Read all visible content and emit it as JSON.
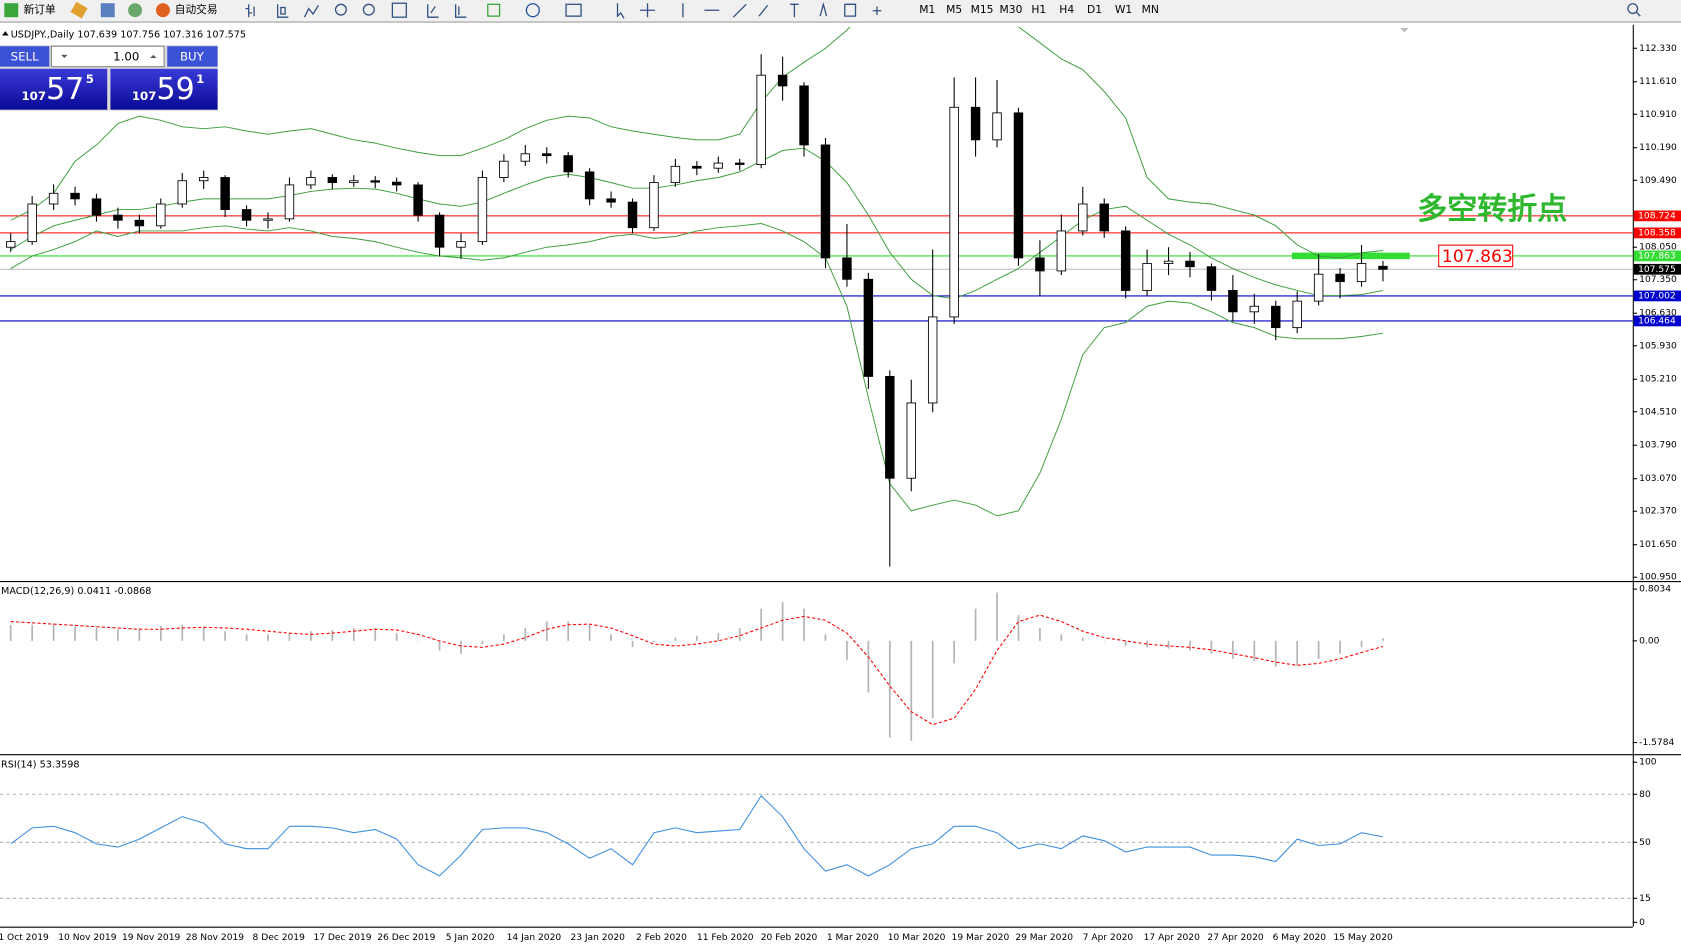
{
  "toolbar": {
    "buttons": [
      "新订单",
      "自动交易"
    ],
    "timeframes": [
      "M1",
      "M5",
      "M15",
      "M30",
      "H1",
      "H4",
      "D1",
      "W1",
      "MN"
    ]
  },
  "trade_panel": {
    "sell_label": "SELL",
    "lots": "1.00",
    "buy_label": "BUY",
    "sell_price": {
      "big": "107",
      "mid": "57",
      "small": "5"
    },
    "buy_price": {
      "big": "107",
      "mid": "59",
      "small": "1"
    }
  },
  "chart_data": {
    "type": "candlestick",
    "symbol": "USDJPY.,Daily",
    "ohlc": [
      [
        108.05,
        108.35,
        107.95,
        108.17
      ],
      [
        108.17,
        109.15,
        108.1,
        108.98
      ],
      [
        108.98,
        109.4,
        108.85,
        109.21
      ],
      [
        109.21,
        109.35,
        108.95,
        109.09
      ],
      [
        109.09,
        109.2,
        108.6,
        108.74
      ],
      [
        108.74,
        108.9,
        108.45,
        108.63
      ],
      [
        108.63,
        108.75,
        108.35,
        108.51
      ],
      [
        108.51,
        109.1,
        108.45,
        108.98
      ],
      [
        108.98,
        109.65,
        108.9,
        109.48
      ],
      [
        109.48,
        109.7,
        109.3,
        109.55
      ],
      [
        109.55,
        109.6,
        108.7,
        108.86
      ],
      [
        108.86,
        108.95,
        108.5,
        108.63
      ],
      [
        108.63,
        108.8,
        108.45,
        108.66
      ],
      [
        108.66,
        109.55,
        108.6,
        109.39
      ],
      [
        109.39,
        109.7,
        109.3,
        109.55
      ],
      [
        109.55,
        109.62,
        109.3,
        109.44
      ],
      [
        109.44,
        109.6,
        109.35,
        109.48
      ],
      [
        109.48,
        109.58,
        109.32,
        109.45
      ],
      [
        109.45,
        109.55,
        109.25,
        109.39
      ],
      [
        109.39,
        109.45,
        108.6,
        108.74
      ],
      [
        108.74,
        108.8,
        107.85,
        108.05
      ],
      [
        108.05,
        108.35,
        107.8,
        108.17
      ],
      [
        108.17,
        109.7,
        108.1,
        109.55
      ],
      [
        109.55,
        110.05,
        109.45,
        109.9
      ],
      [
        109.9,
        110.25,
        109.8,
        110.06
      ],
      [
        110.06,
        110.2,
        109.85,
        110.02
      ],
      [
        110.02,
        110.1,
        109.55,
        109.67
      ],
      [
        109.67,
        109.75,
        108.95,
        109.09
      ],
      [
        109.09,
        109.25,
        108.9,
        109.02
      ],
      [
        109.02,
        109.1,
        108.35,
        108.47
      ],
      [
        108.47,
        109.6,
        108.4,
        109.44
      ],
      [
        109.44,
        109.95,
        109.35,
        109.79
      ],
      [
        109.79,
        109.9,
        109.6,
        109.75
      ],
      [
        109.75,
        110.0,
        109.65,
        109.86
      ],
      [
        109.86,
        109.95,
        109.7,
        109.83
      ],
      [
        109.83,
        112.2,
        109.75,
        111.75
      ],
      [
        111.75,
        112.15,
        111.2,
        111.52
      ],
      [
        111.52,
        111.6,
        110.0,
        110.25
      ],
      [
        110.25,
        110.4,
        107.6,
        107.82
      ],
      [
        107.82,
        108.55,
        107.2,
        107.36
      ],
      [
        107.36,
        107.5,
        105.0,
        105.27
      ],
      [
        105.27,
        105.4,
        101.18,
        103.08
      ],
      [
        103.08,
        105.2,
        102.8,
        104.7
      ],
      [
        104.7,
        108.0,
        104.5,
        106.55
      ],
      [
        106.55,
        111.7,
        106.4,
        111.06
      ],
      [
        111.06,
        111.7,
        110.0,
        110.36
      ],
      [
        110.36,
        111.65,
        110.2,
        110.94
      ],
      [
        110.94,
        111.05,
        107.65,
        107.82
      ],
      [
        107.82,
        108.2,
        107.0,
        107.54
      ],
      [
        107.54,
        108.75,
        107.45,
        108.4
      ],
      [
        108.4,
        109.35,
        108.3,
        108.98
      ],
      [
        108.98,
        109.1,
        108.25,
        108.4
      ],
      [
        108.4,
        108.5,
        106.95,
        107.12
      ],
      [
        107.12,
        108.0,
        107.0,
        107.7
      ],
      [
        107.7,
        108.05,
        107.45,
        107.75
      ],
      [
        107.75,
        107.95,
        107.4,
        107.63
      ],
      [
        107.63,
        107.7,
        106.9,
        107.12
      ],
      [
        107.12,
        107.45,
        106.45,
        106.66
      ],
      [
        106.66,
        107.05,
        106.4,
        106.78
      ],
      [
        106.78,
        106.9,
        106.05,
        106.32
      ],
      [
        106.32,
        107.1,
        106.2,
        106.89
      ],
      [
        106.89,
        107.9,
        106.8,
        107.47
      ],
      [
        107.47,
        107.6,
        106.95,
        107.31
      ],
      [
        107.31,
        108.1,
        107.2,
        107.7
      ],
      [
        107.639,
        107.756,
        107.316,
        107.575
      ]
    ],
    "bollinger": {
      "color": "#3c9e3c",
      "upper": [
        108.63,
        108.86,
        109.21,
        109.9,
        110.25,
        110.71,
        110.87,
        110.78,
        110.64,
        110.6,
        110.64,
        110.55,
        110.48,
        110.55,
        110.6,
        110.48,
        110.36,
        110.29,
        110.18,
        110.09,
        110.02,
        110.02,
        110.18,
        110.36,
        110.6,
        110.78,
        110.87,
        110.83,
        110.64,
        110.55,
        110.48,
        110.41,
        110.36,
        110.36,
        110.48,
        111.17,
        111.71,
        112.03,
        112.33,
        112.72,
        113.26,
        113.83,
        114.3,
        114.53,
        114.3,
        113.6,
        113.02,
        112.79,
        112.45,
        112.1,
        111.87,
        111.4,
        110.83,
        109.55,
        109.09,
        109.02,
        108.98,
        108.86,
        108.74,
        108.51,
        108.1,
        107.86,
        107.82,
        107.93,
        107.98
      ],
      "middle": [
        108.0,
        108.28,
        108.51,
        108.63,
        108.74,
        108.86,
        108.86,
        108.93,
        109.02,
        109.09,
        109.09,
        109.09,
        109.09,
        109.16,
        109.25,
        109.3,
        109.32,
        109.3,
        109.21,
        109.09,
        108.98,
        108.93,
        109.02,
        109.21,
        109.39,
        109.55,
        109.62,
        109.55,
        109.44,
        109.32,
        109.32,
        109.39,
        109.48,
        109.55,
        109.67,
        109.9,
        110.13,
        110.18,
        109.9,
        109.44,
        108.74,
        107.94,
        107.36,
        107.01,
        106.94,
        107.12,
        107.36,
        107.59,
        107.94,
        108.28,
        108.63,
        108.86,
        108.93,
        108.63,
        108.33,
        108.1,
        107.82,
        107.59,
        107.4,
        107.24,
        107.12,
        107.01,
        107.01,
        107.03,
        107.12
      ],
      "lower": [
        107.59,
        107.86,
        108.0,
        108.17,
        108.4,
        108.28,
        108.4,
        108.4,
        108.4,
        108.47,
        108.51,
        108.44,
        108.4,
        108.47,
        108.4,
        108.28,
        108.24,
        108.17,
        108.05,
        107.94,
        107.86,
        107.82,
        107.77,
        107.82,
        107.94,
        108.05,
        108.1,
        108.17,
        108.28,
        108.33,
        108.24,
        108.28,
        108.4,
        108.47,
        108.51,
        108.56,
        108.4,
        108.17,
        107.82,
        106.78,
        104.81,
        102.96,
        102.38,
        102.5,
        102.61,
        102.5,
        102.27,
        102.38,
        103.19,
        104.35,
        105.74,
        106.32,
        106.43,
        106.78,
        106.89,
        106.85,
        106.66,
        106.43,
        106.32,
        106.13,
        106.08,
        106.08,
        106.08,
        106.13,
        106.2
      ]
    },
    "ylim": [
      100.88,
      112.79
    ],
    "yticks": [
      {
        "value": 112.33,
        "label": "112.330"
      },
      {
        "value": 111.61,
        "label": "111.610"
      },
      {
        "value": 110.91,
        "label": "110.910"
      },
      {
        "value": 110.19,
        "label": "110.190"
      },
      {
        "value": 109.49,
        "label": "109.490"
      },
      {
        "value": 108.05,
        "label": "108.050"
      },
      {
        "value": 107.35,
        "label": "107.350"
      },
      {
        "value": 106.63,
        "label": "106.630"
      },
      {
        "value": 105.93,
        "label": "105.930"
      },
      {
        "value": 105.21,
        "label": "105.210"
      },
      {
        "value": 104.51,
        "label": "104.510"
      },
      {
        "value": 103.79,
        "label": "103.790"
      },
      {
        "value": 103.07,
        "label": "103.070"
      },
      {
        "value": 102.37,
        "label": "102.370"
      },
      {
        "value": 101.65,
        "label": "101.650"
      },
      {
        "value": 100.95,
        "label": "100.950"
      }
    ],
    "levels": [
      {
        "value": 108.724,
        "color": "#ff0000"
      },
      {
        "value": 108.358,
        "color": "#ff0000"
      },
      {
        "value": 107.863,
        "color": "#33dd33"
      },
      {
        "value": 107.002,
        "color": "#0000cc"
      },
      {
        "value": 106.464,
        "color": "#0000cc"
      }
    ],
    "annotation": "多空转折点",
    "x_labels": [
      "1 Oct 2019",
      "10 Nov 2019",
      "19 Nov 2019",
      "28 Nov 2019",
      "8 Dec 2019",
      "17 Dec 2019",
      "26 Dec 2019",
      "5 Jan 2020",
      "14 Jan 2020",
      "23 Jan 2020",
      "2 Feb 2020",
      "11 Feb 2020",
      "20 Feb 2020",
      "1 Mar 2020",
      "10 Mar 2020",
      "19 Mar 2020",
      "29 Mar 2020",
      "7 Apr 2020",
      "17 Apr 2020",
      "27 Apr 2020",
      "6 May 2020",
      "15 May 2020"
    ]
  },
  "macd": {
    "type": "macd",
    "name": "MACD(12,26,9)",
    "histogram": [
      0.25,
      0.25,
      0.27,
      0.22,
      0.2,
      0.18,
      0.2,
      0.23,
      0.25,
      0.22,
      0.15,
      0.1,
      0.1,
      0.13,
      0.15,
      0.17,
      0.2,
      0.2,
      0.12,
      0.0,
      -0.15,
      -0.2,
      -0.05,
      0.1,
      0.2,
      0.3,
      0.3,
      0.25,
      0.1,
      -0.1,
      -0.02,
      0.05,
      0.08,
      0.12,
      0.2,
      0.5,
      0.6,
      0.5,
      0.1,
      -0.3,
      -0.8,
      -1.5,
      -1.55,
      -1.2,
      -0.35,
      0.5,
      0.75,
      0.4,
      0.2,
      0.1,
      0.05,
      0.0,
      -0.08,
      -0.1,
      -0.12,
      -0.15,
      -0.2,
      -0.28,
      -0.32,
      -0.4,
      -0.38,
      -0.28,
      -0.2,
      -0.1,
      0.0411
    ],
    "signal": [
      0.3,
      0.28,
      0.26,
      0.24,
      0.22,
      0.2,
      0.18,
      0.18,
      0.2,
      0.21,
      0.2,
      0.18,
      0.15,
      0.12,
      0.1,
      0.12,
      0.15,
      0.18,
      0.17,
      0.1,
      0.0,
      -0.08,
      -0.1,
      -0.05,
      0.05,
      0.18,
      0.25,
      0.26,
      0.2,
      0.08,
      -0.05,
      -0.08,
      -0.05,
      0.0,
      0.08,
      0.2,
      0.32,
      0.38,
      0.32,
      0.12,
      -0.25,
      -0.7,
      -1.1,
      -1.3,
      -1.2,
      -0.75,
      -0.15,
      0.3,
      0.4,
      0.3,
      0.15,
      0.05,
      0.0,
      -0.05,
      -0.08,
      -0.1,
      -0.14,
      -0.2,
      -0.26,
      -0.33,
      -0.38,
      -0.35,
      -0.28,
      -0.18,
      -0.0868
    ],
    "histogram_color": "#b4b4b4",
    "signal_color": "#ff0000",
    "ylim": [
      -1.733,
      0.887
    ],
    "yticks": [
      0.8034,
      {
        "value": 0,
        "label": "0.00"
      },
      -1.5784
    ]
  },
  "rsi": {
    "type": "line",
    "name": "RSI(14)",
    "color": "#3d8fe0",
    "values": [
      49,
      59,
      60,
      56,
      49,
      47,
      52,
      59,
      66,
      62,
      49,
      46,
      46,
      60,
      60,
      59,
      56,
      58,
      52,
      36,
      29,
      42,
      58,
      59,
      59,
      56,
      49,
      40,
      46,
      36,
      56,
      59,
      56,
      57,
      58,
      79,
      66,
      46,
      32,
      36,
      29,
      36,
      46,
      49,
      60,
      60,
      56,
      46,
      49,
      46,
      54,
      51,
      44,
      47,
      47,
      47,
      42,
      42,
      41,
      38,
      52,
      48,
      49,
      56,
      53.3598
    ],
    "ylim": [
      -2.7,
      103.4
    ],
    "yticks": [
      100,
      80,
      50,
      15,
      0
    ],
    "levels": [
      80,
      50,
      15
    ]
  }
}
